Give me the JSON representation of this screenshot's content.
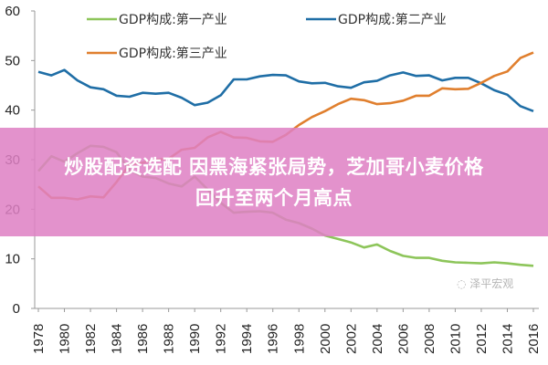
{
  "chart_data": {
    "type": "line",
    "x": [
      1978,
      1979,
      1980,
      1981,
      1982,
      1983,
      1984,
      1985,
      1986,
      1987,
      1988,
      1989,
      1990,
      1991,
      1992,
      1993,
      1994,
      1995,
      1996,
      1997,
      1998,
      1999,
      2000,
      2001,
      2002,
      2003,
      2004,
      2005,
      2006,
      2007,
      2008,
      2009,
      2010,
      2011,
      2012,
      2013,
      2014,
      2015,
      2016
    ],
    "xticks": [
      "1978",
      "1980",
      "1982",
      "1984",
      "1986",
      "1988",
      "1990",
      "1992",
      "1994",
      "1996",
      "1998",
      "2000",
      "2002",
      "2004",
      "2006",
      "2008",
      "2010",
      "2012",
      "2014",
      "2016"
    ],
    "yticks": [
      "0",
      "10",
      "20",
      "30",
      "40",
      "50",
      "60"
    ],
    "ylim": [
      0,
      60
    ],
    "grid": false,
    "legend_placement": "top",
    "series": [
      {
        "name": "GDP构成:第一产业",
        "color": "#8dc55a",
        "values": [
          27.7,
          30.7,
          29.6,
          31.3,
          32.8,
          32.6,
          31.5,
          27.9,
          26.6,
          26.3,
          25.2,
          24.6,
          26.6,
          24.0,
          21.3,
          19.3,
          19.5,
          19.6,
          19.3,
          17.9,
          17.2,
          16.1,
          14.7,
          14.0,
          13.3,
          12.3,
          12.9,
          11.6,
          10.6,
          10.2,
          10.2,
          9.6,
          9.3,
          9.2,
          9.1,
          9.3,
          9.1,
          8.8,
          8.6
        ]
      },
      {
        "name": "GDP构成:第二产业",
        "color": "#1f6ea6",
        "values": [
          47.7,
          47.0,
          48.1,
          46.0,
          44.6,
          44.2,
          42.9,
          42.7,
          43.5,
          43.3,
          43.5,
          42.5,
          41.0,
          41.5,
          43.0,
          46.2,
          46.2,
          46.8,
          47.1,
          47.0,
          45.8,
          45.4,
          45.5,
          44.8,
          44.5,
          45.6,
          45.9,
          47.0,
          47.6,
          46.9,
          47.0,
          46.0,
          46.5,
          46.5,
          45.4,
          44.0,
          43.1,
          40.8,
          39.8
        ]
      },
      {
        "name": "GDP构成:第三产业",
        "color": "#e07f2e",
        "values": [
          24.6,
          22.3,
          22.3,
          22.0,
          22.6,
          22.4,
          25.5,
          29.0,
          29.4,
          30.0,
          30.2,
          32.0,
          32.4,
          34.5,
          35.6,
          34.5,
          34.4,
          33.7,
          33.6,
          35.0,
          37.0,
          38.6,
          39.8,
          41.2,
          42.3,
          42.0,
          41.2,
          41.4,
          41.9,
          42.9,
          42.9,
          44.4,
          44.2,
          44.3,
          45.5,
          46.9,
          47.8,
          50.5,
          51.6
        ]
      }
    ]
  },
  "banner": {
    "line1": "炒股配资选配 因黑海紧张局势，芝加哥小麦价格",
    "line2": "回升至两个月高点",
    "color": "#de80c4"
  },
  "watermark": "泽平宏观"
}
